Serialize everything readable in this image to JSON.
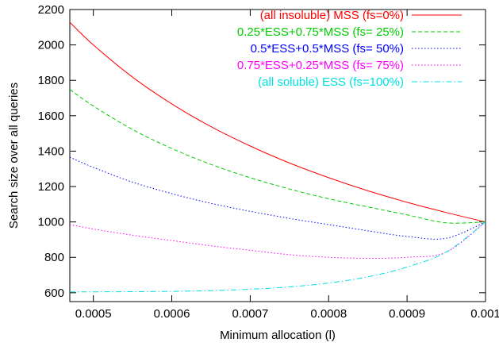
{
  "chart_data": {
    "type": "line",
    "title": "",
    "xlabel": "Minimum allocation (l)",
    "ylabel": "Search size over all queries",
    "xlim": [
      0.00047,
      0.001
    ],
    "ylim": [
      550,
      2200
    ],
    "xticks": [
      0.0005,
      0.0006,
      0.0007,
      0.0008,
      0.0009,
      0.001
    ],
    "xtick_labels": [
      "0.0005",
      "0.0006",
      "0.0007",
      "0.0008",
      "0.0009",
      "0.001"
    ],
    "yticks": [
      600,
      800,
      1000,
      1200,
      1400,
      1600,
      1800,
      2000,
      2200
    ],
    "ytick_labels": [
      "600",
      "800",
      "1000",
      "1200",
      "1400",
      "1600",
      "1800",
      "2000",
      "2200"
    ],
    "grid": false,
    "legend_position": "top-right",
    "series": [
      {
        "name": "(all insoluble) MSS (fs=0%)",
        "color": "#ff0000",
        "dash": "solid",
        "x": [
          0.00047,
          0.0005,
          0.00055,
          0.0006,
          0.00065,
          0.0007,
          0.00075,
          0.0008,
          0.00085,
          0.0009,
          0.00095,
          0.001
        ],
        "y": [
          2128,
          2000,
          1818,
          1667,
          1538,
          1429,
          1333,
          1250,
          1176,
          1111,
          1053,
          1000
        ]
      },
      {
        "name": "0.25*ESS+0.75*MSS (fs= 25%)",
        "color": "#00cc00",
        "dash": "dashed",
        "x": [
          0.00047,
          0.0005,
          0.00055,
          0.0006,
          0.00065,
          0.0007,
          0.00075,
          0.0008,
          0.00085,
          0.0009,
          0.00095,
          0.001
        ],
        "y": [
          1748,
          1655,
          1522,
          1415,
          1325,
          1250,
          1186,
          1131,
          1085,
          1040,
          995,
          1000
        ]
      },
      {
        "name": "0.5*ESS+0.5*MSS (fs= 50%)",
        "color": "#0000ff",
        "dash": "dotted",
        "x": [
          0.00047,
          0.0005,
          0.00055,
          0.0006,
          0.00065,
          0.0007,
          0.00075,
          0.0008,
          0.00085,
          0.0009,
          0.00095,
          0.001
        ],
        "y": [
          1366,
          1308,
          1225,
          1160,
          1105,
          1060,
          1020,
          985,
          950,
          918,
          908,
          1000
        ]
      },
      {
        "name": "0.75*ESS+0.25*MSS (fs= 75%)",
        "color": "#ff00ff",
        "dash": "dotted",
        "x": [
          0.00047,
          0.0005,
          0.00055,
          0.0006,
          0.00065,
          0.0007,
          0.00075,
          0.0008,
          0.00085,
          0.0009,
          0.00095,
          0.001
        ],
        "y": [
          985,
          960,
          925,
          895,
          865,
          840,
          815,
          800,
          795,
          800,
          830,
          1000
        ]
      },
      {
        "name": "(all soluble) ESS (fs=100%)",
        "color": "#00e0e0",
        "dash": "dashdot",
        "x": [
          0.00047,
          0.0005,
          0.00055,
          0.0006,
          0.00065,
          0.0007,
          0.00075,
          0.0008,
          0.00085,
          0.0009,
          0.00095,
          0.001
        ],
        "y": [
          605,
          605,
          606,
          608,
          612,
          620,
          633,
          655,
          690,
          745,
          830,
          1000
        ]
      }
    ]
  }
}
